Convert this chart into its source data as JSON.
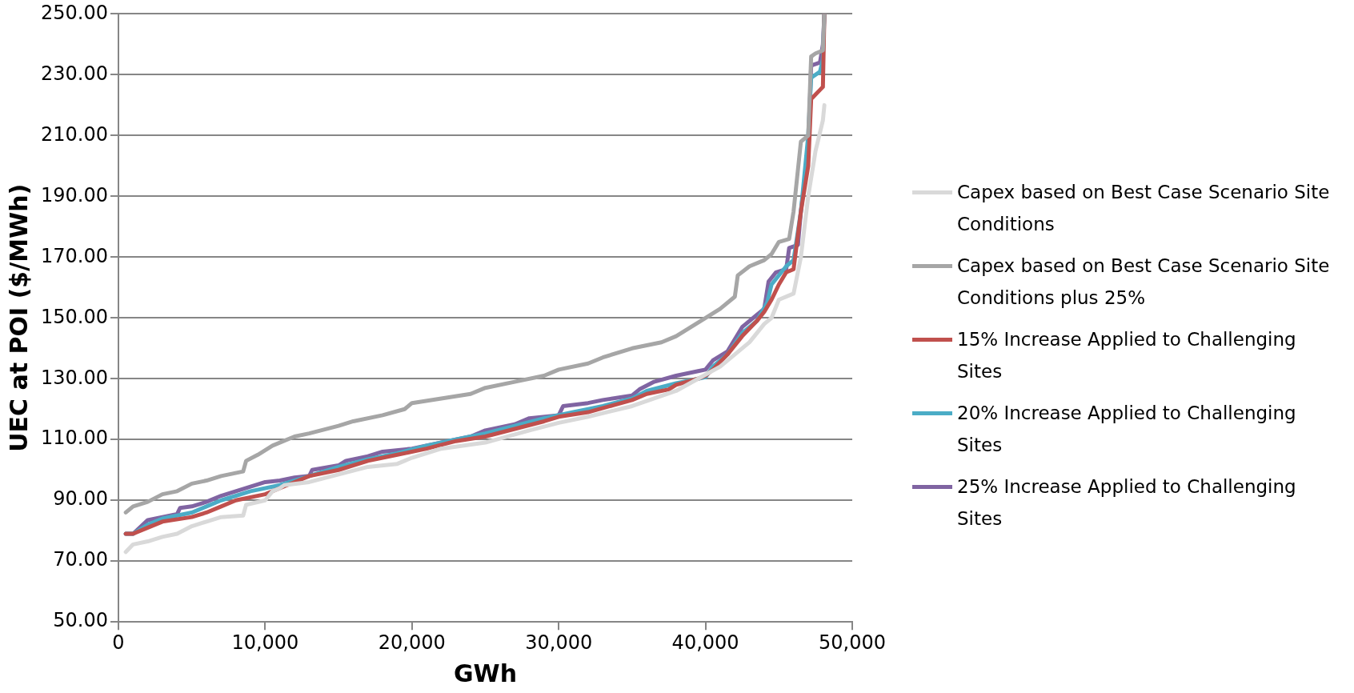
{
  "chart_data": {
    "type": "line",
    "xlabel": "GWh",
    "ylabel": "UEC at POI ($/MWh)",
    "xlim": [
      0,
      50000
    ],
    "xticks": [
      0,
      {
        "value": 10000,
        "label": "10,000"
      },
      {
        "value": 20000,
        "label": "20,000"
      },
      {
        "value": 30000,
        "label": "30,000"
      },
      {
        "value": 40000,
        "label": "40,000"
      },
      {
        "value": 50000,
        "label": "50,000"
      }
    ],
    "ylim": [
      50,
      250
    ],
    "yticks": [
      {
        "value": 50,
        "label": "50.00"
      },
      {
        "value": 70,
        "label": "70.00"
      },
      {
        "value": 90,
        "label": "90.00"
      },
      {
        "value": 110,
        "label": "110.00"
      },
      {
        "value": 130,
        "label": "130.00"
      },
      {
        "value": 150,
        "label": "150.00"
      },
      {
        "value": 170,
        "label": "170.00"
      },
      {
        "value": 190,
        "label": "190.00"
      },
      {
        "value": 210,
        "label": "210.00"
      },
      {
        "value": 230,
        "label": "230.00"
      },
      {
        "value": 250,
        "label": "250.00"
      }
    ],
    "grid": "y",
    "legend": "right",
    "marker": "none",
    "line_style": "solid",
    "series": [
      {
        "name": "Capex based on Best Case Scenario Site Conditions",
        "color": "#d9d9d9",
        "x": [
          500,
          1000,
          2000,
          3000,
          4000,
          5000,
          6000,
          7000,
          8500,
          8700,
          10000,
          10500,
          11000,
          11300,
          13000,
          15000,
          17000,
          19000,
          20000,
          22000,
          25000,
          28000,
          30000,
          32000,
          35000,
          38000,
          39500,
          41000,
          42000,
          43000,
          44000,
          44500,
          45000,
          46000,
          46500,
          47000,
          47500,
          48000,
          48100
        ],
        "values": [
          73,
          75.5,
          76.5,
          78,
          79,
          81.5,
          83,
          84.5,
          85,
          88.5,
          90,
          93,
          94,
          95,
          96,
          98.5,
          101,
          102,
          104,
          107,
          109,
          113,
          115.5,
          117.5,
          121,
          126,
          130,
          134,
          138,
          142,
          148,
          150,
          156,
          158,
          170,
          190,
          205,
          215,
          220
        ]
      },
      {
        "name": "Capex based on Best Case Scenario Site Conditions plus 25%",
        "color": "#a6a6a6",
        "x": [
          500,
          1000,
          2000,
          3000,
          4000,
          5000,
          6000,
          7000,
          8500,
          8700,
          9500,
          10500,
          12000,
          13000,
          15000,
          16000,
          18000,
          19500,
          20000,
          22000,
          24000,
          25000,
          27000,
          29000,
          30000,
          32000,
          33000,
          35000,
          37000,
          38000,
          40000,
          41000,
          42000,
          42200,
          43000,
          44000,
          44500,
          45000,
          45700,
          46000,
          46500,
          47000,
          47200,
          47500,
          48000,
          48100
        ],
        "values": [
          86,
          88,
          89.5,
          92,
          93,
          95.5,
          96.5,
          98,
          99.5,
          103,
          105,
          108,
          111,
          112,
          114.5,
          116,
          118,
          120,
          122,
          123.5,
          125,
          127,
          129,
          131,
          133,
          135,
          137,
          140,
          142,
          144,
          150,
          153,
          157,
          164,
          167,
          169,
          171,
          175,
          176,
          185,
          208,
          210,
          236,
          237,
          238,
          250
        ]
      },
      {
        "name": "15% Increase Applied to Challenging Sites",
        "color": "#c0504d",
        "x": [
          500,
          1000,
          2000,
          3000,
          5000,
          6000,
          7000,
          8000,
          10000,
          11000,
          12000,
          13000,
          15000,
          17000,
          19000,
          21000,
          23000,
          25000,
          27000,
          29000,
          30000,
          32000,
          35000,
          36000,
          37500,
          38000,
          39500,
          40000,
          40500,
          41500,
          42500,
          43500,
          44000,
          44500,
          45000,
          45500,
          46000,
          46500,
          47000,
          47200,
          47800,
          48000,
          48100
        ],
        "values": [
          79,
          79,
          81,
          83,
          84.5,
          86,
          88,
          90,
          92,
          94,
          96,
          98,
          100,
          103,
          105,
          107,
          109.5,
          111,
          113.5,
          116,
          117.5,
          119,
          123,
          125,
          126.5,
          128,
          130,
          131,
          133,
          138,
          144,
          149,
          152,
          156,
          161,
          165,
          166,
          185,
          200,
          222,
          225,
          226,
          250
        ]
      },
      {
        "name": "20% Increase Applied to Challenging Sites",
        "color": "#4bacc6",
        "x": [
          500,
          1000,
          2000,
          3000,
          4000,
          5000,
          6000,
          7000,
          9000,
          11000,
          13000,
          15000,
          17000,
          19000,
          21000,
          23000,
          25000,
          27000,
          29000,
          31000,
          33000,
          35000,
          36000,
          38000,
          40000,
          40500,
          41500,
          42500,
          43500,
          44200,
          44500,
          45500,
          46000,
          46500,
          47000,
          47200,
          47800,
          48000,
          48100
        ],
        "values": [
          79,
          79,
          82,
          84,
          85,
          86,
          88,
          90,
          93,
          95,
          98,
          101,
          103.5,
          105.5,
          108,
          110,
          112,
          114.5,
          117,
          119,
          121,
          123.5,
          126,
          128.5,
          130.5,
          134,
          138,
          145,
          149,
          155,
          161,
          167,
          169,
          185,
          210,
          229,
          231,
          235,
          250
        ]
      },
      {
        "name": "25% Increase Applied to Challenging Sites",
        "color": "#8064a2",
        "x": [
          500,
          1000,
          2000,
          3000,
          4000,
          4200,
          5000,
          6000,
          7000,
          8000,
          9000,
          10000,
          11000,
          12000,
          13000,
          13200,
          15000,
          15500,
          17000,
          18000,
          20000,
          22000,
          24000,
          25000,
          27000,
          28000,
          30000,
          30300,
          32000,
          33000,
          35000,
          35500,
          36500,
          38000,
          39500,
          40000,
          40500,
          41500,
          42500,
          43500,
          44000,
          44300,
          44800,
          45500,
          45700,
          46300,
          46500,
          47000,
          47200,
          47800,
          48000,
          48100
        ],
        "values": [
          79,
          79,
          83.5,
          84.5,
          85.5,
          87.5,
          88,
          89.5,
          91.5,
          93,
          94.5,
          96,
          96.5,
          97.5,
          98,
          100,
          101.5,
          103,
          104.5,
          106,
          107,
          109,
          111,
          113,
          115,
          117,
          118,
          121,
          122,
          123,
          124.5,
          126.5,
          129,
          131,
          132.5,
          133,
          136,
          139,
          147,
          151,
          153,
          162,
          165,
          166,
          173,
          174,
          185,
          205,
          233,
          234,
          240,
          250
        ]
      }
    ]
  }
}
